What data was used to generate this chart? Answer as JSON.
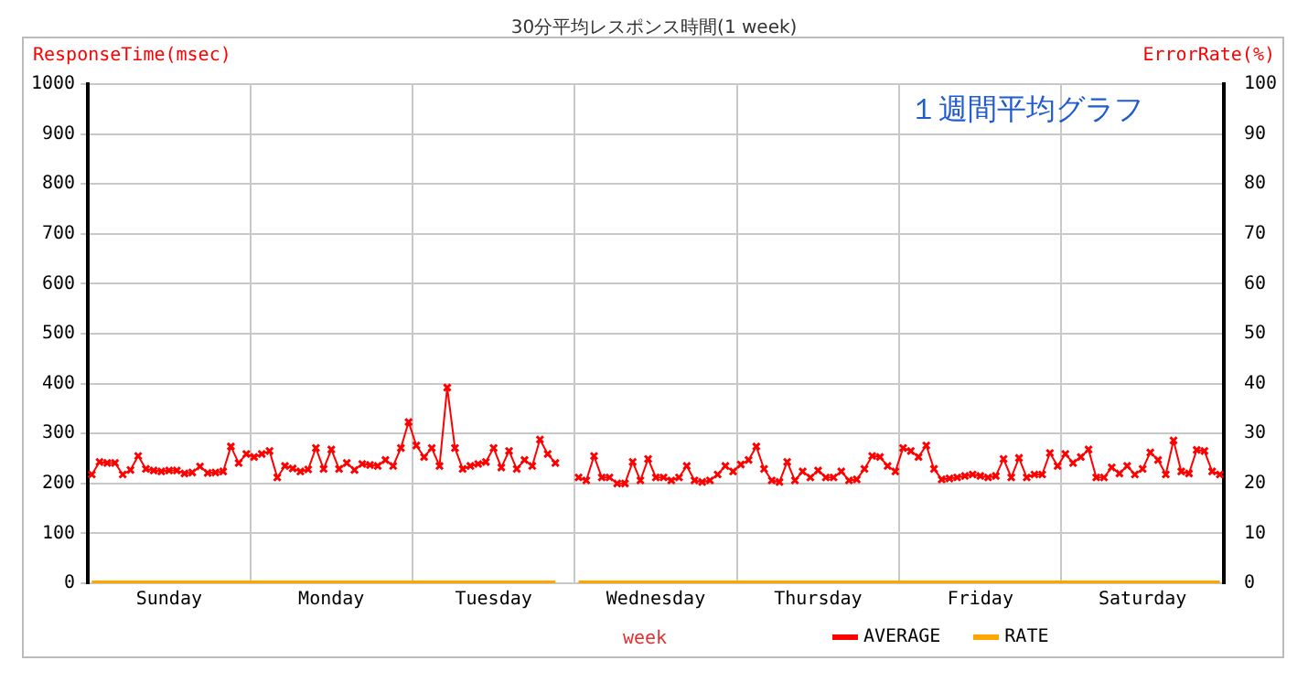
{
  "chart_data": {
    "type": "line",
    "title": "30分平均レスポンス時間(1 week)",
    "xlabel": "week",
    "ylabel": "ResponseTime(msec)",
    "y2label": "ErrorRate(%)",
    "annotations": [
      "１週間平均グラフ"
    ],
    "categories": [
      null,
      null,
      null,
      null,
      null,
      null,
      null,
      null,
      null,
      null,
      "Sunday",
      null,
      null,
      null,
      null,
      null,
      null,
      null,
      null,
      null,
      null,
      null,
      null,
      null,
      null,
      null,
      null,
      null,
      null,
      null,
      null,
      "Monday",
      null,
      null,
      null,
      null,
      null,
      null,
      null,
      null,
      null,
      null,
      null,
      null,
      null,
      null,
      null,
      null,
      null,
      null,
      null,
      null,
      "Tuesday",
      null,
      null,
      null,
      null,
      null,
      null,
      null,
      null,
      null,
      null,
      null,
      null,
      null,
      null,
      null,
      null,
      null,
      null,
      null,
      null,
      "Wednesday",
      null,
      null,
      null,
      null,
      null,
      null,
      null,
      null,
      null,
      null,
      null,
      null,
      null,
      null,
      null,
      null,
      null,
      null,
      null,
      null,
      "Thursday",
      null,
      null,
      null,
      null,
      null,
      null,
      null,
      null,
      null,
      null,
      null,
      null,
      null,
      null,
      null,
      null,
      null,
      null,
      null,
      null,
      "Friday",
      null,
      null,
      null,
      null,
      null,
      null,
      null,
      null,
      null,
      null,
      null,
      null,
      null,
      null,
      null,
      null,
      null,
      null,
      null,
      null,
      "Saturday",
      null,
      null,
      null,
      null,
      null,
      null,
      null,
      null,
      null,
      null
    ],
    "ylim": [
      0,
      1000
    ],
    "yticks": [
      0,
      100,
      200,
      300,
      400,
      500,
      600,
      700,
      800,
      900,
      1000
    ],
    "y2lim": [
      0,
      100
    ],
    "y2ticks": [
      0,
      10,
      20,
      30,
      40,
      50,
      60,
      70,
      80,
      90,
      100
    ],
    "grid": true,
    "legend": "bottom",
    "marker": "cross",
    "line_style": "solid",
    "series": [
      {
        "name": "AVERAGE",
        "color": "#ff0000",
        "values": [
          218,
          243,
          241,
          241,
          218,
          227,
          255,
          229,
          226,
          224,
          226,
          226,
          220,
          222,
          234,
          221,
          222,
          224,
          274,
          241,
          259,
          253,
          259,
          265,
          212,
          235,
          230,
          224,
          228,
          271,
          229,
          268,
          229,
          241,
          227,
          239,
          237,
          235,
          247,
          235,
          271,
          323,
          276,
          253,
          271,
          235,
          392,
          271,
          229,
          235,
          239,
          243,
          271,
          232,
          265,
          229,
          247,
          235,
          288,
          259,
          241,
          null,
          null,
          212,
          206,
          255,
          212,
          212,
          200,
          200,
          243,
          206,
          249,
          212,
          212,
          206,
          212,
          235,
          206,
          203,
          206,
          218,
          235,
          224,
          238,
          247,
          274,
          229,
          206,
          203,
          243,
          206,
          224,
          212,
          226,
          212,
          212,
          224,
          206,
          208,
          229,
          255,
          253,
          235,
          224,
          271,
          265,
          253,
          276,
          229,
          208,
          210,
          212,
          215,
          218,
          215,
          212,
          215,
          249,
          212,
          251,
          212,
          218,
          218,
          261,
          235,
          259,
          241,
          253,
          268,
          212,
          212,
          232,
          220,
          235,
          218,
          229,
          262,
          247,
          218,
          286,
          224,
          220,
          267,
          265,
          224,
          218
        ]
      },
      {
        "name": "RATE",
        "color": "#ffa500",
        "axis": "y2",
        "marker": "none",
        "values": [
          0,
          0,
          0,
          0,
          0,
          0,
          0,
          0,
          0,
          0,
          0,
          0,
          0,
          0,
          0,
          0,
          0,
          0,
          0,
          0,
          0,
          0,
          0,
          0,
          0,
          0,
          0,
          0,
          0,
          0,
          0,
          0,
          0,
          0,
          0,
          0,
          0,
          0,
          0,
          0,
          0,
          0,
          0,
          0,
          0,
          0,
          0,
          0,
          0,
          0,
          0,
          0,
          0,
          0,
          0,
          0,
          0,
          0,
          0,
          0,
          0,
          null,
          null,
          0,
          0,
          0,
          0,
          0,
          0,
          0,
          0,
          0,
          0,
          0,
          0,
          0,
          0,
          0,
          0,
          0,
          0,
          0,
          0,
          0,
          0,
          0,
          0,
          0,
          0,
          0,
          0,
          0,
          0,
          0,
          0,
          0,
          0,
          0,
          0,
          0,
          0,
          0,
          0,
          0,
          0,
          0,
          0,
          0,
          0,
          0,
          0,
          0,
          0,
          0,
          0,
          0,
          0,
          0,
          0,
          0,
          0,
          0,
          0,
          0,
          0,
          0,
          0,
          0,
          0,
          0,
          0,
          0,
          0,
          0,
          0,
          0,
          0,
          0,
          0,
          0,
          0,
          0,
          0,
          0,
          0,
          0,
          0
        ]
      }
    ]
  }
}
